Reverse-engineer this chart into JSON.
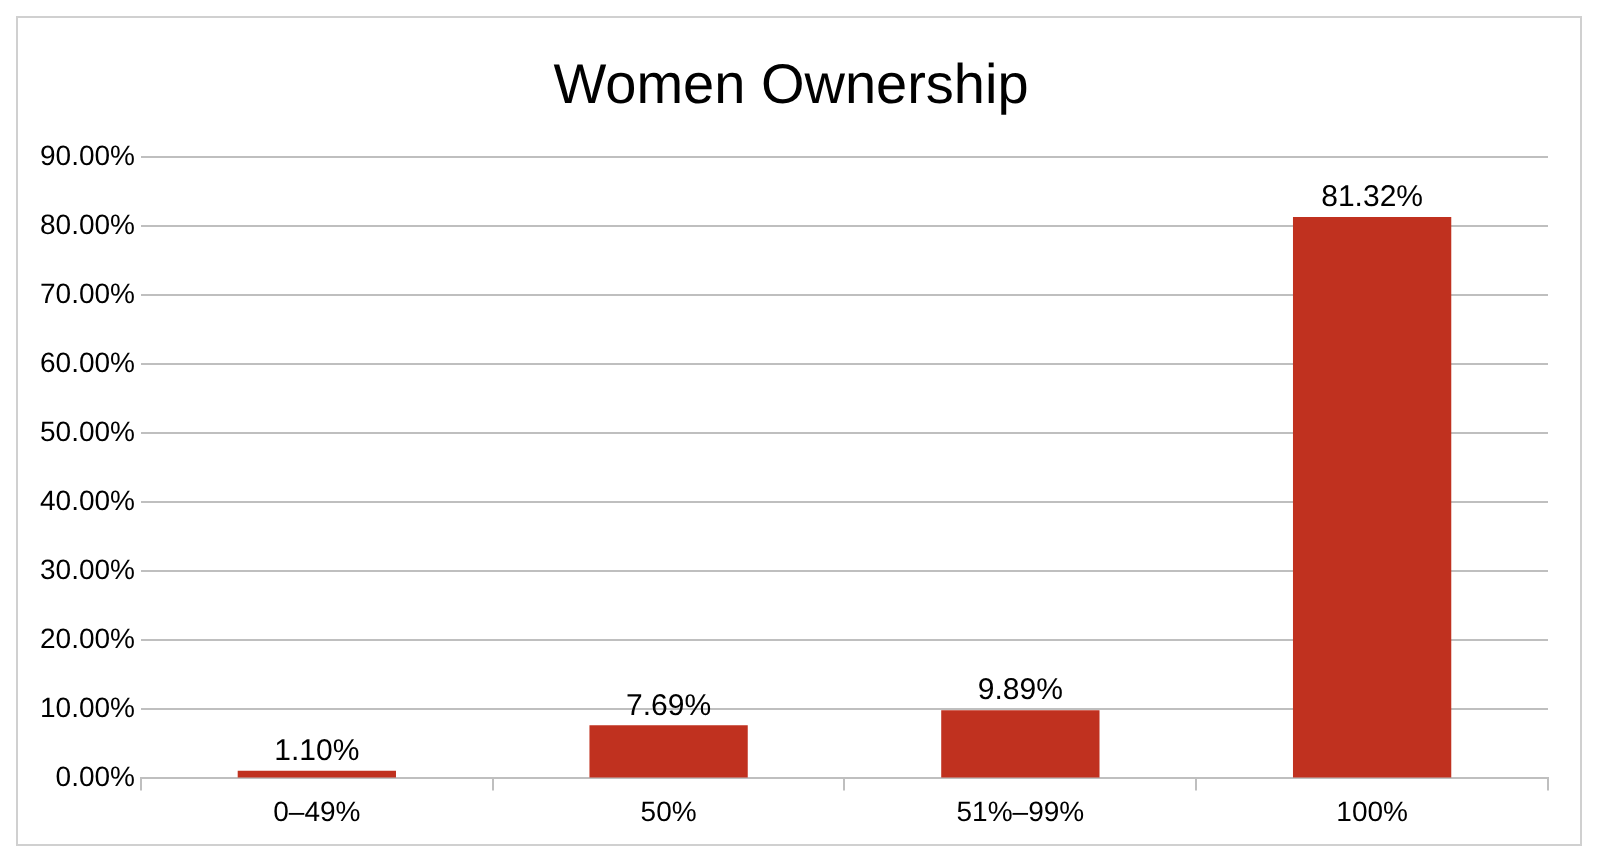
{
  "chart_data": {
    "type": "bar",
    "title": "Women Ownership",
    "categories": [
      "0–49%",
      "50%",
      "51%–99%",
      "100%"
    ],
    "values": [
      1.1,
      7.69,
      9.89,
      81.32
    ],
    "value_labels": [
      "1.10%",
      "7.69%",
      "9.89%",
      "81.32%"
    ],
    "color": "#c0311f",
    "ylim": [
      0,
      90
    ],
    "yticks": [
      {
        "value": 0,
        "label": "0.00%"
      },
      {
        "value": 10,
        "label": "10.00%"
      },
      {
        "value": 20,
        "label": "20.00%"
      },
      {
        "value": 30,
        "label": "30.00%"
      },
      {
        "value": 40,
        "label": "40.00%"
      },
      {
        "value": 50,
        "label": "50.00%"
      },
      {
        "value": 60,
        "label": "60.00%"
      },
      {
        "value": 70,
        "label": "70.00%"
      },
      {
        "value": 80,
        "label": "80.00%"
      },
      {
        "value": 90,
        "label": "90.00%"
      }
    ],
    "grid": "y"
  }
}
